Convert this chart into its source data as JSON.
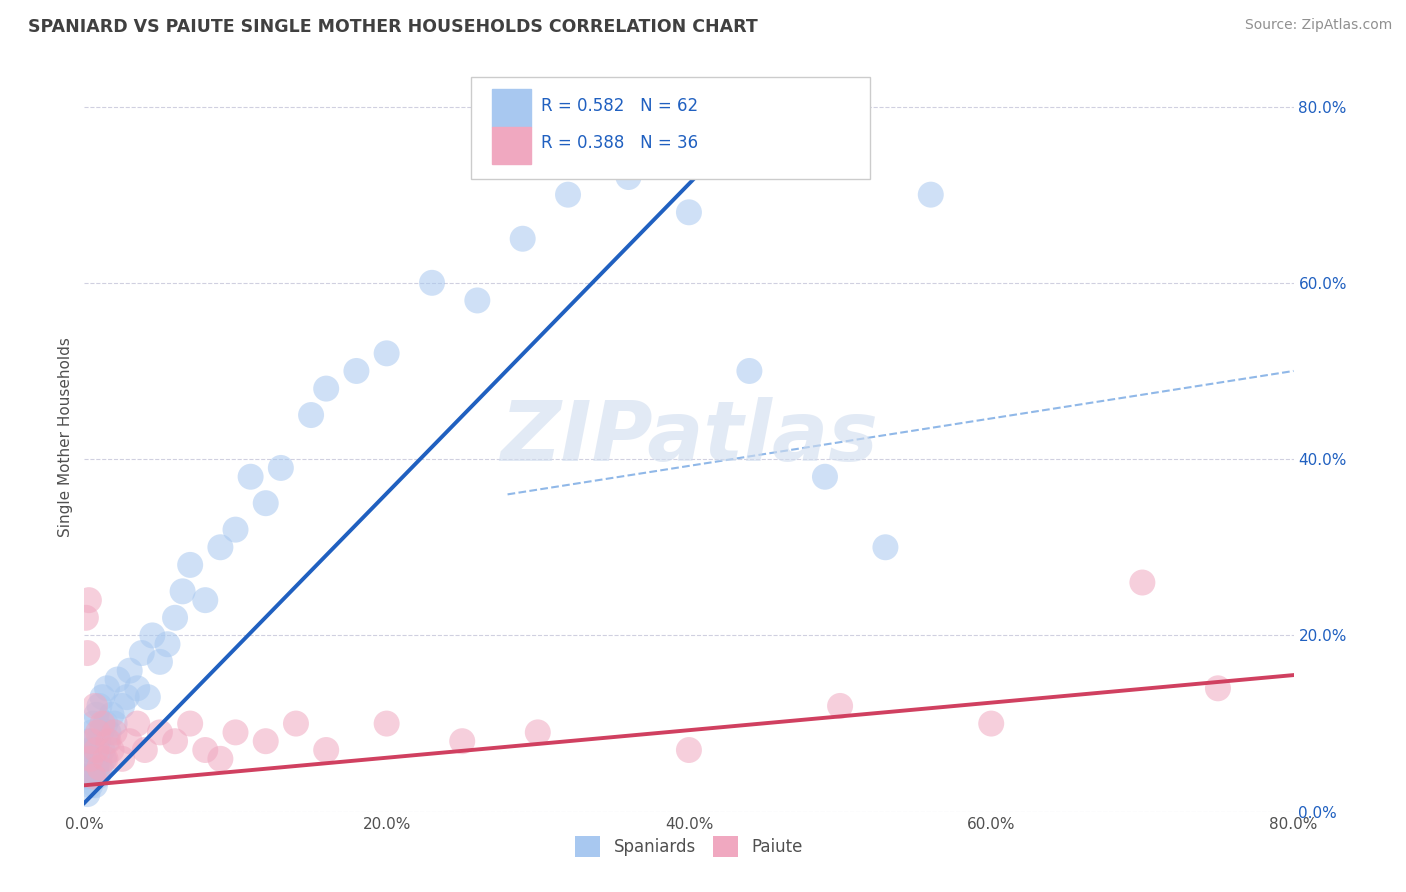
{
  "title": "SPANIARD VS PAIUTE SINGLE MOTHER HOUSEHOLDS CORRELATION CHART",
  "source": "Source: ZipAtlas.com",
  "ylabel": "Single Mother Households",
  "xlim": [
    0.0,
    0.8
  ],
  "ylim": [
    0.0,
    0.85
  ],
  "ytick_vals": [
    0.0,
    0.2,
    0.4,
    0.6,
    0.8
  ],
  "xtick_vals": [
    0.0,
    0.2,
    0.4,
    0.6,
    0.8
  ],
  "blue_color": "#A8C8F0",
  "pink_color": "#F0A8C0",
  "blue_line_color": "#2060C0",
  "pink_line_color": "#D04060",
  "dash_line_color": "#90B8E8",
  "title_color": "#404040",
  "source_color": "#909090",
  "legend_text_color": "#2060C0",
  "legend_label_color": "#404040",
  "background_color": "#FFFFFF",
  "grid_color": "#D0D0E0",
  "watermark_text": "ZIPatlas",
  "watermark_color": "#D0DDEF",
  "spaniards_x": [
    0.001,
    0.002,
    0.003,
    0.003,
    0.004,
    0.004,
    0.005,
    0.005,
    0.006,
    0.006,
    0.007,
    0.007,
    0.008,
    0.008,
    0.009,
    0.009,
    0.01,
    0.01,
    0.011,
    0.011,
    0.012,
    0.012,
    0.013,
    0.014,
    0.015,
    0.015,
    0.016,
    0.018,
    0.02,
    0.022,
    0.025,
    0.028,
    0.03,
    0.035,
    0.038,
    0.042,
    0.045,
    0.05,
    0.055,
    0.06,
    0.065,
    0.07,
    0.08,
    0.09,
    0.1,
    0.11,
    0.12,
    0.13,
    0.15,
    0.16,
    0.18,
    0.2,
    0.23,
    0.26,
    0.29,
    0.32,
    0.36,
    0.4,
    0.44,
    0.49,
    0.53,
    0.56
  ],
  "spaniards_y": [
    0.04,
    0.02,
    0.06,
    0.08,
    0.03,
    0.07,
    0.04,
    0.09,
    0.05,
    0.1,
    0.03,
    0.07,
    0.05,
    0.11,
    0.04,
    0.08,
    0.06,
    0.12,
    0.05,
    0.09,
    0.07,
    0.13,
    0.06,
    0.1,
    0.08,
    0.14,
    0.09,
    0.11,
    0.1,
    0.15,
    0.12,
    0.13,
    0.16,
    0.14,
    0.18,
    0.13,
    0.2,
    0.17,
    0.19,
    0.22,
    0.25,
    0.28,
    0.24,
    0.3,
    0.32,
    0.38,
    0.35,
    0.39,
    0.45,
    0.48,
    0.5,
    0.52,
    0.6,
    0.58,
    0.65,
    0.7,
    0.72,
    0.68,
    0.5,
    0.38,
    0.3,
    0.7
  ],
  "paiute_x": [
    0.001,
    0.002,
    0.003,
    0.004,
    0.005,
    0.006,
    0.007,
    0.008,
    0.009,
    0.01,
    0.012,
    0.014,
    0.016,
    0.018,
    0.02,
    0.025,
    0.03,
    0.035,
    0.04,
    0.05,
    0.06,
    0.07,
    0.08,
    0.09,
    0.1,
    0.12,
    0.14,
    0.16,
    0.2,
    0.25,
    0.3,
    0.4,
    0.5,
    0.6,
    0.7,
    0.75
  ],
  "paiute_y": [
    0.22,
    0.18,
    0.24,
    0.06,
    0.08,
    0.04,
    0.12,
    0.07,
    0.09,
    0.05,
    0.1,
    0.06,
    0.08,
    0.07,
    0.09,
    0.06,
    0.08,
    0.1,
    0.07,
    0.09,
    0.08,
    0.1,
    0.07,
    0.06,
    0.09,
    0.08,
    0.1,
    0.07,
    0.1,
    0.08,
    0.09,
    0.07,
    0.12,
    0.1,
    0.26,
    0.14
  ],
  "blue_line_x": [
    0.0,
    0.45
  ],
  "blue_line_y": [
    0.01,
    0.8
  ],
  "pink_line_x": [
    0.0,
    0.8
  ],
  "pink_line_y": [
    0.03,
    0.155
  ],
  "dash_line_x": [
    0.28,
    0.8
  ],
  "dash_line_y": [
    0.36,
    0.5
  ]
}
